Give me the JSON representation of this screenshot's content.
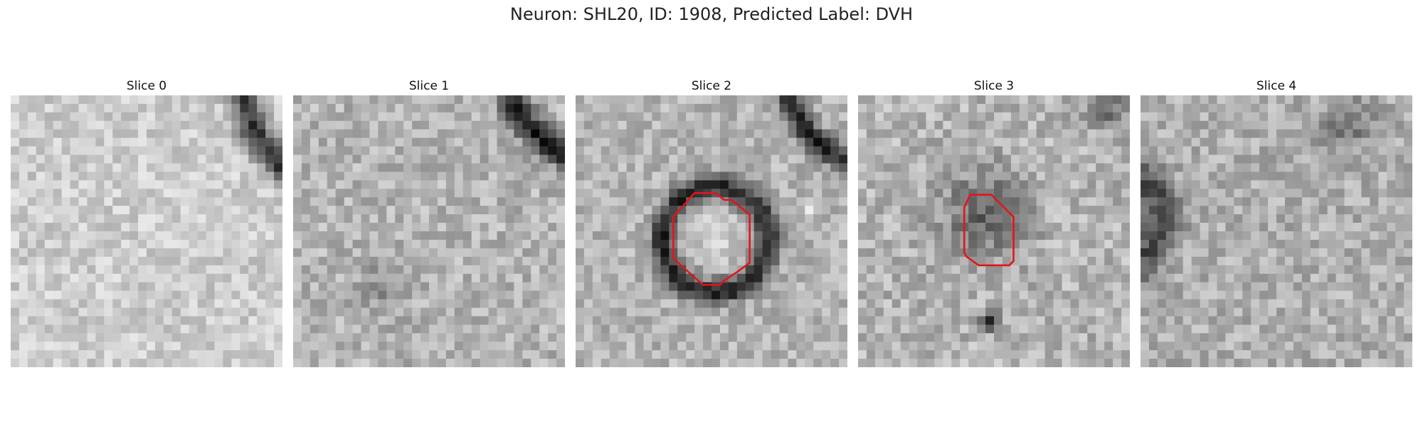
{
  "figure": {
    "title": "Neuron: SHL20, ID: 1908, Predicted Label: DVH"
  },
  "colors": {
    "outline": "#e0161b",
    "colormap": "gray"
  },
  "slices": [
    {
      "label": "Slice 0",
      "has_outline": false
    },
    {
      "label": "Slice 1",
      "has_outline": false
    },
    {
      "label": "Slice 2",
      "has_outline": true
    },
    {
      "label": "Slice 3",
      "has_outline": true
    },
    {
      "label": "Slice 4",
      "has_outline": false
    }
  ]
}
